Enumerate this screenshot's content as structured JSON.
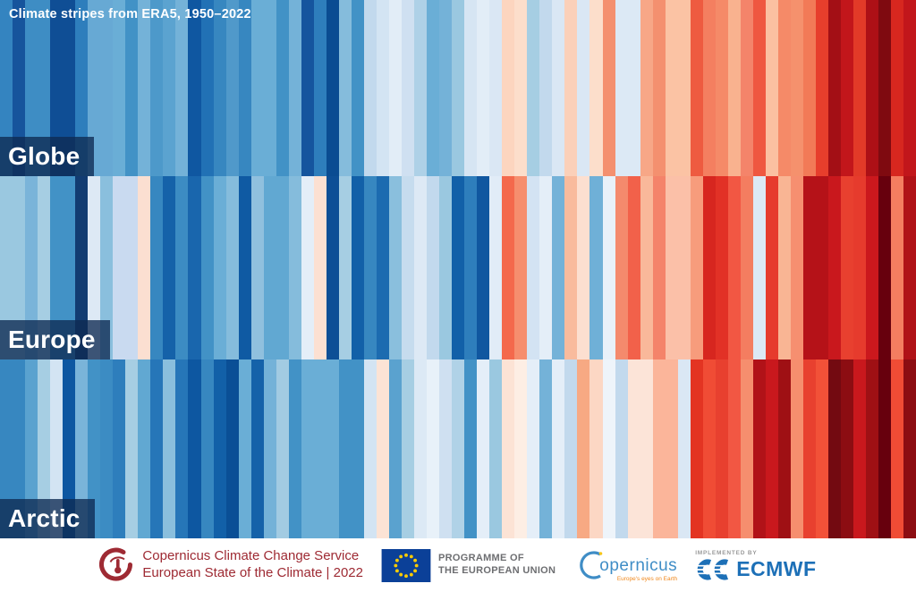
{
  "chart_data": {
    "type": "heatmap",
    "title": "Climate stripes from ERA5, 1950–2022",
    "year_start": 1950,
    "year_end": 2022,
    "legend_position": "none",
    "palette_note": "blue = colder anomaly, red = warmer anomaly",
    "rows": [
      {
        "label": "Globe",
        "colors": [
          "#3484c0",
          "#16549c",
          "#3e8dc4",
          "#3e8dc4",
          "#0f4e95",
          "#0f4e95",
          "#2e7ebc",
          "#67a9d4",
          "#67a9d4",
          "#6aaed6",
          "#4292c6",
          "#74b2d8",
          "#4d99ca",
          "#5ba3d0",
          "#74b2d8",
          "#0f57a1",
          "#2171b5",
          "#3787c0",
          "#5099ca",
          "#3787c0",
          "#6aaed6",
          "#6aaed6",
          "#4292c6",
          "#74b2d8",
          "#15559e",
          "#2e7ebc",
          "#0a4c92",
          "#85bcdc",
          "#4292c6",
          "#c2d9ed",
          "#d3e4f3",
          "#e2edf7",
          "#cfe0f1",
          "#aed1e7",
          "#6aaed6",
          "#74b2d8",
          "#9ac8e0",
          "#d6e5f3",
          "#e2edf7",
          "#dae7f4",
          "#fcd5bf",
          "#fcdecb",
          "#a6cee3",
          "#c2d9ed",
          "#dae7f4",
          "#fbd0b9",
          "#dae7f4",
          "#fcdecb",
          "#f4906f",
          "#dce9f5",
          "#dce9f5",
          "#f7a787",
          "#f4906f",
          "#fbc3a4",
          "#fbc3a4",
          "#ee5b40",
          "#f47f60",
          "#f58a68",
          "#f9b28f",
          "#f4846a",
          "#ef5740",
          "#fbc0a1",
          "#f58a68",
          "#f5916d",
          "#f27a57",
          "#e73e2c",
          "#a30f15",
          "#c2161b",
          "#e23a28",
          "#ad1016",
          "#7f0a10",
          "#d7271f",
          "#c2161b"
        ]
      },
      {
        "label": "Europe",
        "colors": [
          "#9ac8e0",
          "#9ac8e0",
          "#7ab4d9",
          "#a6cee3",
          "#4292c6",
          "#4292c6",
          "#123c72",
          "#dde9f5",
          "#8abfdd",
          "#c9daf0",
          "#c9daf0",
          "#fbdfd1",
          "#3787c0",
          "#1562a9",
          "#3c8cc3",
          "#1966ad",
          "#4292c6",
          "#6aaed6",
          "#85bcdc",
          "#0f5aa3",
          "#90c0de",
          "#61a8d2",
          "#61a8d2",
          "#85bcdc",
          "#e4eef8",
          "#fce0d2",
          "#0d4f96",
          "#a6cee3",
          "#1260a8",
          "#3787c0",
          "#1c6bb0",
          "#8abfdd",
          "#c6dcee",
          "#dde9f5",
          "#c2d9ed",
          "#9ac8e0",
          "#1260a8",
          "#2e7ebc",
          "#1057a0",
          "#e1ecf7",
          "#f4694c",
          "#f68e6e",
          "#d3e3f3",
          "#e4eef8",
          "#74b2d8",
          "#f9bb9d",
          "#fcdfd0",
          "#6fb0d7",
          "#e8f1f9",
          "#f48a6d",
          "#f2614a",
          "#f9b89a",
          "#f4836a",
          "#fbc0a8",
          "#fbc0a8",
          "#f79c7c",
          "#d7261f",
          "#e23126",
          "#f25743",
          "#f47d60",
          "#dce9f5",
          "#e63b2d",
          "#f9b594",
          "#f68f70",
          "#b51218",
          "#b51218",
          "#c9181d",
          "#e8402f",
          "#e63b2d",
          "#cb181d",
          "#67000d",
          "#f47d60",
          "#b01217"
        ]
      },
      {
        "label": "Arctic",
        "colors": [
          "#3787c0",
          "#3787c0",
          "#5aa2cf",
          "#a6cee3",
          "#d3e4f3",
          "#0d57a1",
          "#7ab4d9",
          "#4292c6",
          "#3c8cc3",
          "#2e7ebc",
          "#a6cee3",
          "#61a8d2",
          "#2676b8",
          "#8abfdd",
          "#2676b8",
          "#0d57a1",
          "#3787c0",
          "#1260a8",
          "#0a4f96",
          "#6aaed6",
          "#1562a9",
          "#74b2d8",
          "#a2cbe2",
          "#4292c6",
          "#6aaed6",
          "#6aaed6",
          "#6aaed6",
          "#4292c6",
          "#4292c6",
          "#d3e4f3",
          "#fce3d5",
          "#5aa2cf",
          "#a6cee3",
          "#dce9f5",
          "#e8f1f9",
          "#cfe0f1",
          "#b0d2e7",
          "#4292c6",
          "#e4eef8",
          "#9ac8e0",
          "#fce3d5",
          "#fdeee4",
          "#e4eef8",
          "#74b2d8",
          "#e4eef8",
          "#c2d9ed",
          "#f7a983",
          "#fcd7c4",
          "#eef4fa",
          "#c2d9ed",
          "#fce4d8",
          "#fce4d8",
          "#fbb59a",
          "#fbb59a",
          "#dae7f4",
          "#e33422",
          "#f04c35",
          "#e8402f",
          "#f25743",
          "#f68e6e",
          "#b11218",
          "#c9181d",
          "#9f1014",
          "#f68e6e",
          "#e8402f",
          "#f25138",
          "#730a11",
          "#8c0d12",
          "#c9181d",
          "#9f1014",
          "#67000d",
          "#f04c35",
          "#8c0d12"
        ]
      }
    ]
  },
  "footer": {
    "c3s": {
      "line1": "Copernicus Climate Change Service",
      "line2": "European State of the Climate | 2022"
    },
    "eu": {
      "line1": "PROGRAMME OF",
      "line2": "THE EUROPEAN UNION"
    },
    "copernicus": {
      "name": "opernicus",
      "tagline": "Europe's eyes on Earth"
    },
    "ecmwf": {
      "pre": "IMPLEMENTED BY",
      "name": "ECMWF"
    }
  },
  "theme": {
    "c3s_red": "#9e2a33",
    "eu_blue": "#0b4098",
    "star_yellow": "#ffcc00",
    "eu_gray": "#6d6e71",
    "copernicus_blue": "#3f8dc6",
    "tagline_orange": "#f0881d",
    "ecmwf_blue": "#1d70b7",
    "label_overlay": "rgba(14,42,82,0.78)"
  }
}
